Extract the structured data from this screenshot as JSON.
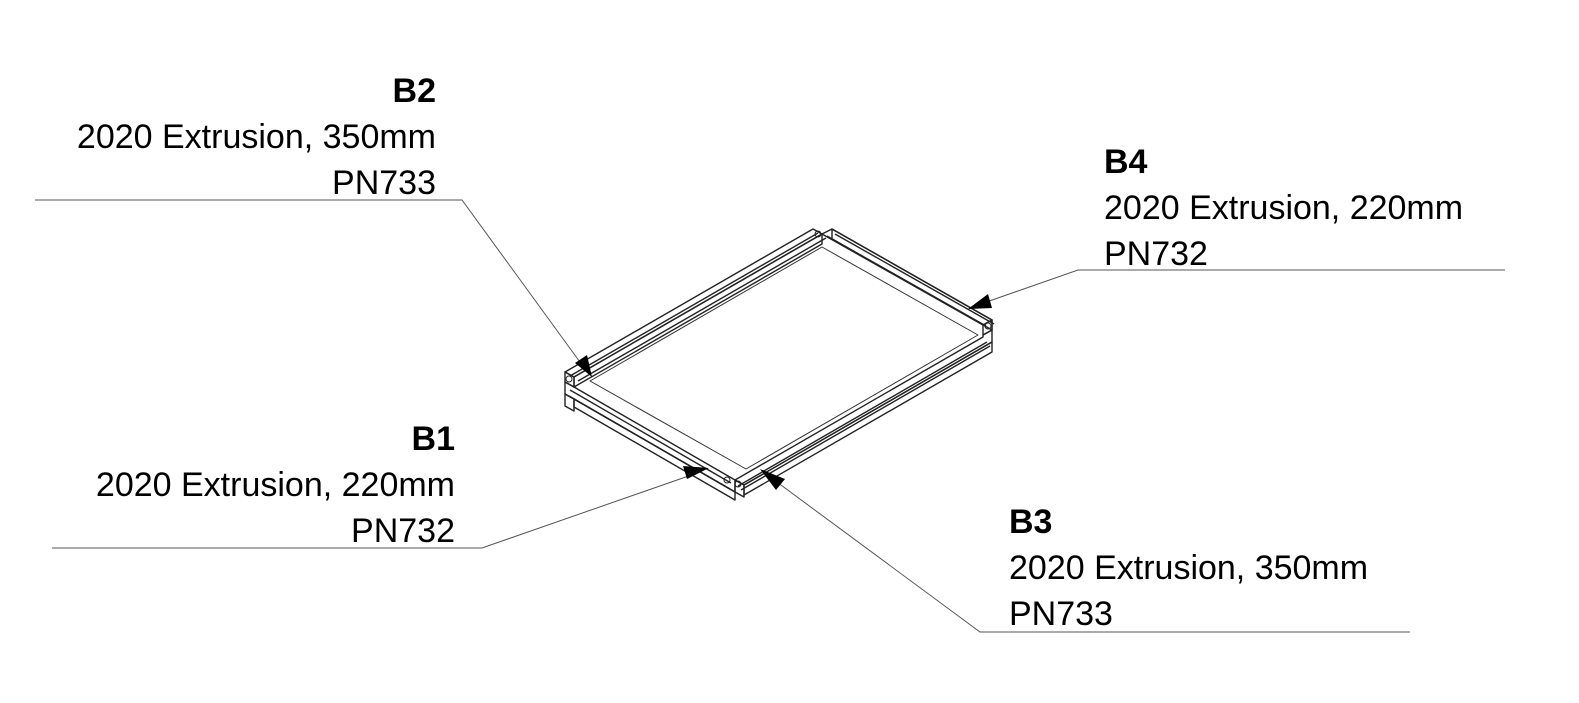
{
  "callouts": {
    "b2": {
      "id": "B2",
      "description": "2020 Extrusion, 350mm",
      "part_number": "PN733"
    },
    "b4": {
      "id": "B4",
      "description": "2020 Extrusion, 220mm",
      "part_number": "PN732"
    },
    "b1": {
      "id": "B1",
      "description": "2020 Extrusion, 220mm",
      "part_number": "PN732"
    },
    "b3": {
      "id": "B3",
      "description": "2020 Extrusion, 350mm",
      "part_number": "PN733"
    }
  },
  "colors": {
    "ink": "#000000",
    "leader": "#555555",
    "background": "#ffffff"
  }
}
